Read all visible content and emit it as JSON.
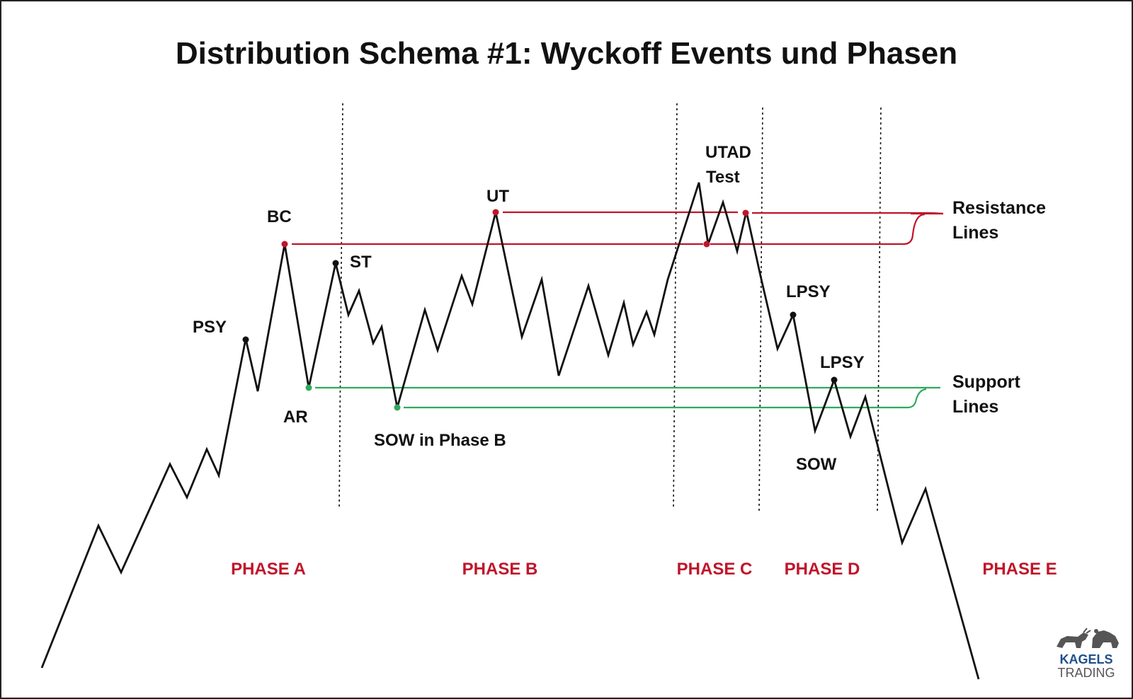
{
  "title": "Distribution Schema #1: Wyckoff Events und Phasen",
  "events": {
    "psy": "PSY",
    "bc": "BC",
    "ar": "AR",
    "st": "ST",
    "sow_b": "SOW in Phase B",
    "ut": "UT",
    "utad": "UTAD",
    "test": "Test",
    "lpsy_1": "LPSY",
    "lpsy_2": "LPSY",
    "sow": "SOW"
  },
  "phases": {
    "a": "PHASE A",
    "b": "PHASE B",
    "c": "PHASE C",
    "d": "PHASE D",
    "e": "PHASE E"
  },
  "side_labels": {
    "resistance_1": "Resistance",
    "resistance_2": "Lines",
    "support_1": "Support",
    "support_2": "Lines"
  },
  "logo": {
    "brand_top": "KAGELS",
    "brand_bottom": "TRADING",
    "icon": "bull-bear-icon"
  },
  "colors": {
    "price": "#111111",
    "resistance": "#c0152a",
    "support": "#2faa5c",
    "phase_text": "#c0152a",
    "logo_blue": "#1f4f8f"
  }
}
